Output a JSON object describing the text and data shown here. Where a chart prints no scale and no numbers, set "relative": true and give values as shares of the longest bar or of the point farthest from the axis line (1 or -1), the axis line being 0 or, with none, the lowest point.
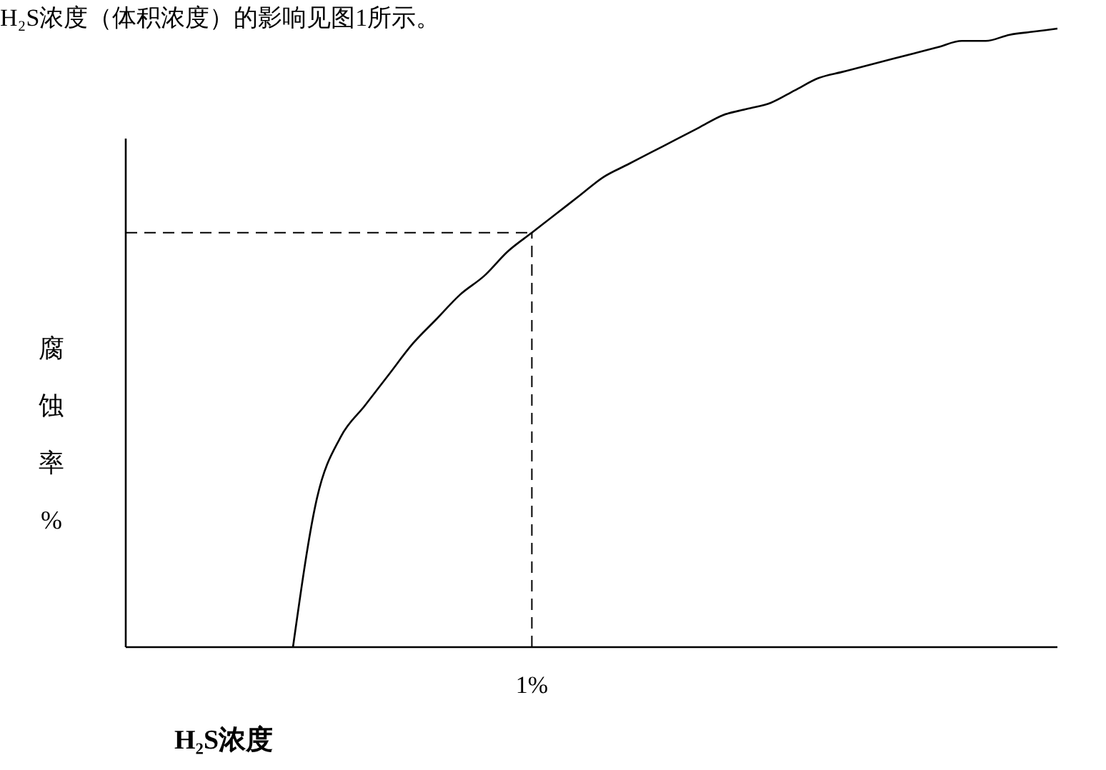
{
  "chart_data": {
    "type": "line",
    "title": "H₂S浓度（体积浓度）的影响见图1所示。",
    "xlabel": "H₂S浓度",
    "ylabel": "腐蚀率%",
    "relative": true,
    "categories": [
      null,
      null,
      null,
      null,
      null,
      null,
      null,
      null,
      null,
      null,
      null,
      null,
      null,
      null,
      null,
      null,
      null,
      null,
      null,
      null,
      null,
      null,
      null,
      null,
      null,
      null,
      null,
      null,
      null,
      null,
      null,
      null,
      null,
      null,
      null,
      null,
      null,
      null,
      null,
      null
    ],
    "series": [
      {
        "color": "#000000",
        "values": [
          null,
          null,
          null,
          null,
          null,
          null,
          null,
          0,
          0.24,
          0.34,
          0.39,
          0.44,
          0.49,
          0.53,
          0.57,
          0.6,
          0.64,
          0.67,
          0.7,
          0.73,
          0.76,
          0.78,
          0.8,
          0.82,
          0.84,
          0.86,
          0.87,
          0.88,
          0.9,
          0.92,
          0.93,
          0.94,
          0.95,
          0.96,
          0.97,
          0.98,
          0.98,
          0.99,
          0.995,
          1
        ]
      }
    ],
    "annotations": [
      "1%"
    ],
    "ref_lines": [
      {
        "axis": "y",
        "value": 0.67,
        "line_style": "dashed",
        "color": "#000000"
      }
    ],
    "line_style": "solid"
  }
}
